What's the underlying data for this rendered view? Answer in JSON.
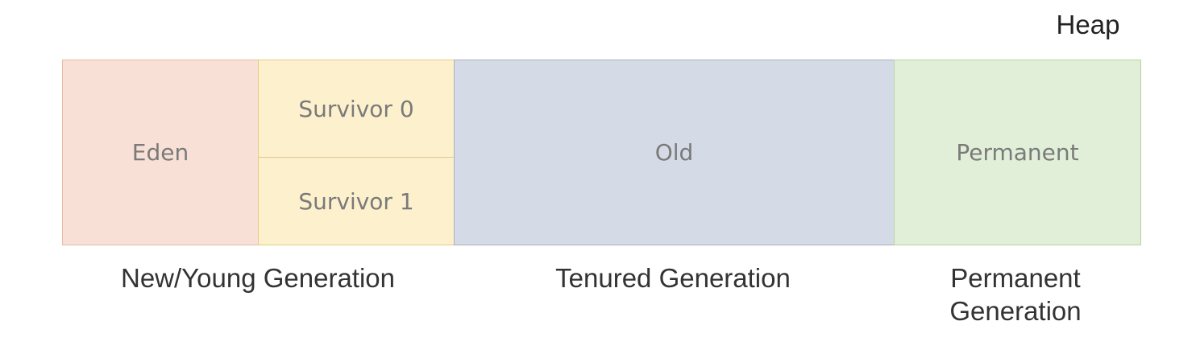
{
  "heap_label": "Heap",
  "regions": {
    "eden": "Eden",
    "survivor0": "Survivor 0",
    "survivor1": "Survivor 1",
    "old": "Old",
    "permanent": "Permanent"
  },
  "generations": {
    "young": "New/Young Generation",
    "tenured": "Tenured Generation",
    "permanent_line1": "Permanent",
    "permanent_line2": "Generation"
  },
  "colors": {
    "eden_fill": "#f8e0d6",
    "eden_stroke": "#e8b8a6",
    "survivor_fill": "#fdf0cd",
    "survivor_stroke": "#e2cc88",
    "old_fill": "#d5dbe6",
    "old_stroke": "#a9b0bd",
    "permanent_fill": "#e1efd8",
    "permanent_stroke": "#b7d4a6"
  }
}
